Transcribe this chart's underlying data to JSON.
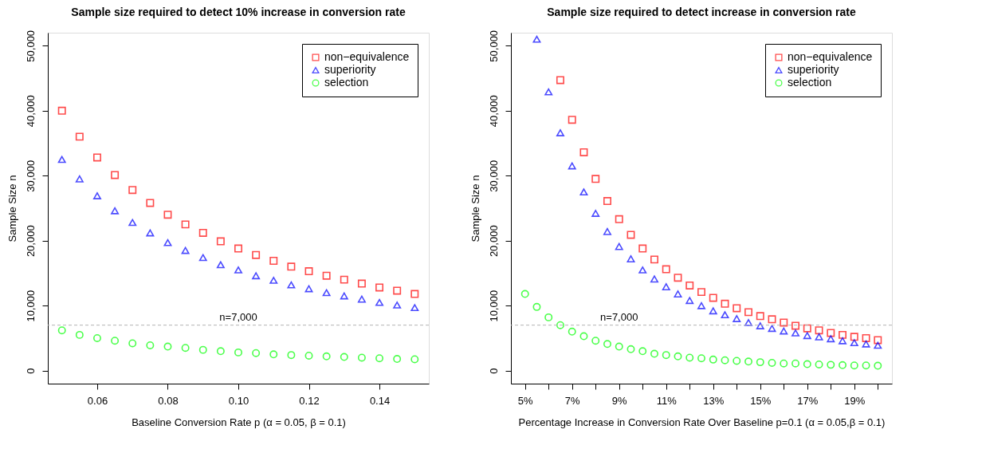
{
  "chart_data": [
    {
      "type": "scatter",
      "title": "Sample size required to detect 10% increase in conversion rate",
      "xlabel": "Baseline Conversion Rate p (α = 0.05, β = 0.1)",
      "ylabel": "Sample Size n",
      "x": [
        0.05,
        0.055,
        0.06,
        0.065,
        0.07,
        0.075,
        0.08,
        0.085,
        0.09,
        0.095,
        0.1,
        0.105,
        0.11,
        0.115,
        0.12,
        0.125,
        0.13,
        0.135,
        0.14,
        0.145,
        0.15
      ],
      "series": [
        {
          "name": "non−equivalence",
          "color": "#ff0000",
          "marker": "square",
          "values": [
            40000,
            36000,
            32800,
            30100,
            27800,
            25800,
            24000,
            22500,
            21200,
            19900,
            18800,
            17800,
            16900,
            16000,
            15300,
            14600,
            14000,
            13400,
            12800,
            12300,
            11800
          ]
        },
        {
          "name": "superiority",
          "color": "#0000ff",
          "marker": "triangle",
          "values": [
            32500,
            29500,
            26900,
            24600,
            22800,
            21200,
            19700,
            18500,
            17400,
            16300,
            15500,
            14600,
            13900,
            13200,
            12600,
            12000,
            11500,
            11000,
            10500,
            10100,
            9700
          ]
        },
        {
          "name": "selection",
          "color": "#00ff00",
          "marker": "circle",
          "values": [
            6200,
            5500,
            5000,
            4600,
            4200,
            3900,
            3700,
            3500,
            3200,
            3000,
            2800,
            2700,
            2500,
            2400,
            2300,
            2200,
            2100,
            2000,
            1900,
            1800,
            1750
          ]
        }
      ],
      "xlim": [
        0.046,
        0.154
      ],
      "xticks": [
        0.06,
        0.08,
        {
          "value": 0.1,
          "label": "0.10"
        },
        0.12,
        0.14
      ],
      "ylim": [
        -2000,
        52000
      ],
      "yticks": [
        0,
        {
          "value": 10000,
          "label": "10,000"
        },
        {
          "value": 20000,
          "label": "20,000"
        },
        {
          "value": 30000,
          "label": "30,000"
        },
        {
          "value": 40000,
          "label": "40,000"
        },
        {
          "value": 50000,
          "label": "50,000"
        }
      ],
      "ref_lines": [
        {
          "axis": "y",
          "value": 7000,
          "color": "#b3b3b3",
          "line_style": "dashed"
        }
      ],
      "annotations": [
        {
          "text": "n=7,000",
          "x": 0.1,
          "y": 7000
        }
      ],
      "legend": "top right",
      "grid": false
    },
    {
      "type": "scatter",
      "title": "Sample size required to detect increase in conversion rate",
      "xlabel": "Percentage Increase in Conversion Rate Over Baseline p=0.1 (α = 0.05,β = 0.1)",
      "ylabel": "Sample Size n",
      "x": [
        5,
        5.5,
        6,
        6.5,
        7,
        7.5,
        8,
        8.5,
        9,
        9.5,
        10,
        10.5,
        11,
        11.5,
        12,
        12.5,
        13,
        13.5,
        14,
        14.5,
        15,
        15.5,
        16,
        16.5,
        17,
        17.5,
        18,
        18.5,
        19,
        19.5,
        20
      ],
      "series": [
        {
          "name": "non−equivalence",
          "color": "#ff0000",
          "marker": "square",
          "values": [
            null,
            null,
            null,
            44700,
            38600,
            33600,
            29500,
            26100,
            23300,
            20900,
            18800,
            17100,
            15600,
            14300,
            13100,
            12100,
            11200,
            10300,
            9600,
            9000,
            8400,
            7900,
            7400,
            6900,
            6500,
            6200,
            5800,
            5500,
            5200,
            5000,
            4700
          ]
        },
        {
          "name": "superiority",
          "color": "#0000ff",
          "marker": "triangle",
          "values": [
            null,
            51000,
            42900,
            36600,
            31500,
            27500,
            24200,
            21400,
            19100,
            17200,
            15500,
            14100,
            12900,
            11800,
            10800,
            10000,
            9200,
            8600,
            8000,
            7400,
            6900,
            6500,
            6100,
            5800,
            5400,
            5200,
            4900,
            4600,
            4300,
            4100,
            3900
          ]
        },
        {
          "name": "selection",
          "color": "#00ff00",
          "marker": "circle",
          "values": [
            11800,
            9800,
            8200,
            7000,
            6000,
            5300,
            4600,
            4100,
            3700,
            3300,
            3000,
            2600,
            2400,
            2200,
            2000,
            1900,
            1700,
            1600,
            1500,
            1400,
            1300,
            1200,
            1100,
            1100,
            1000,
            950,
            900,
            850,
            800,
            800,
            750
          ]
        }
      ],
      "xlim": [
        4.4,
        20.6
      ],
      "xticks": [
        {
          "value": 5,
          "label": "5%"
        },
        {
          "value": 6,
          "label": null
        },
        {
          "value": 7,
          "label": "7%"
        },
        {
          "value": 8,
          "label": null
        },
        {
          "value": 9,
          "label": "9%"
        },
        {
          "value": 10,
          "label": null
        },
        {
          "value": 11,
          "label": "11%"
        },
        {
          "value": 12,
          "label": null
        },
        {
          "value": 13,
          "label": "13%"
        },
        {
          "value": 14,
          "label": null
        },
        {
          "value": 15,
          "label": "15%"
        },
        {
          "value": 16,
          "label": null
        },
        {
          "value": 17,
          "label": "17%"
        },
        {
          "value": 18,
          "label": null
        },
        {
          "value": 19,
          "label": "19%"
        },
        {
          "value": 20,
          "label": null
        }
      ],
      "ylim": [
        -2000,
        52000
      ],
      "yticks": [
        0,
        {
          "value": 10000,
          "label": "10,000"
        },
        {
          "value": 20000,
          "label": "20,000"
        },
        {
          "value": 30000,
          "label": "30,000"
        },
        {
          "value": 40000,
          "label": "40,000"
        },
        {
          "value": 50000,
          "label": "50,000"
        }
      ],
      "ref_lines": [
        {
          "axis": "y",
          "value": 7000,
          "color": "#b3b3b3",
          "line_style": "dashed"
        }
      ],
      "annotations": [
        {
          "text": "n=7,000",
          "x": 9,
          "y": 7000
        }
      ],
      "legend": "top right",
      "grid": false
    }
  ]
}
